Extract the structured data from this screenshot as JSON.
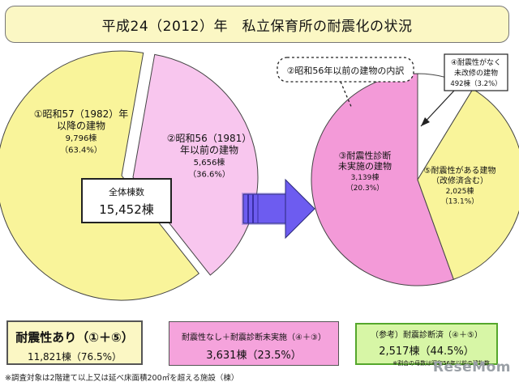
{
  "title": "平成24（2012）年　私立保育所の耐震化の状況",
  "chart_data": [
    {
      "type": "pie",
      "total_label": "全体棟数",
      "total_value": "15,452棟",
      "slices": [
        {
          "label_lines": [
            "①昭和57（1982）年",
            "以降の建物",
            "9,796棟",
            "（63.4%）"
          ],
          "value": 9796,
          "percent": 63.4,
          "color": "#f9f49a"
        },
        {
          "label_lines": [
            "②昭和56（1981）",
            "年以前の建物",
            "5,656棟",
            "（36.6%）"
          ],
          "value": 5656,
          "percent": 36.6,
          "color": "#f8c6ee"
        }
      ]
    },
    {
      "type": "pie",
      "title": "②昭和56年以前の建物の内訳",
      "slices": [
        {
          "label_lines": [
            "③耐震性診断",
            "未実施の建物",
            "3,139棟",
            "（20.3%）"
          ],
          "value": 3139,
          "percent": 20.3,
          "color": "#f39ad8"
        },
        {
          "label_lines": [
            "④耐震性がなく",
            "未改修の建物",
            "492棟（3.2%）"
          ],
          "value": 492,
          "percent": 3.2,
          "color": "#ffffff"
        },
        {
          "label_lines": [
            "⑤耐震性がある建物",
            "（改修済含む）",
            "2,025棟",
            "（13.1%）"
          ],
          "value": 2025,
          "percent": 13.1,
          "color": "#f9f49a"
        }
      ]
    }
  ],
  "summary": [
    {
      "line1": "耐震性あり（①＋⑤）",
      "line2": "11,821棟（76.5%）"
    },
    {
      "line1": "耐震性なし＋耐震診断未実施（④＋③）",
      "line2": "3,631棟（23.5%）"
    },
    {
      "line1": "（参考）耐震診断済（④＋⑤）",
      "line2": "2,517棟（44.5%）",
      "line3": "※割合の母数は昭和56年以前の建物数"
    }
  ],
  "footnote": "※調査対象は2階建て以上又は延べ床面積200㎡を超える施設（棟）",
  "watermark": "ReseMom",
  "colors": {
    "yellow": "#f9f49a",
    "light_pink": "#f8c6ee",
    "pink": "#f39ad8",
    "arrow": "#5a4bd0"
  }
}
